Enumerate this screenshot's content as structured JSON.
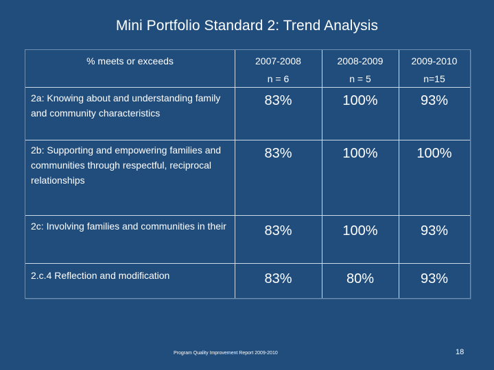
{
  "slide": {
    "title": "Mini Portfolio Standard 2: Trend Analysis",
    "footer": "Program Quality Improvement Report 2009-2010",
    "page_number": "18"
  },
  "table": {
    "first_header": "% meets or exceeds",
    "columns": [
      {
        "year": "2007-2008",
        "n": "n = 6"
      },
      {
        "year": "2008-2009",
        "n": "n = 5"
      },
      {
        "year": "2009-2010",
        "n": "n=15"
      }
    ],
    "rows": [
      {
        "label": "2a: Knowing about and understanding family and community characteristics",
        "values": [
          "83%",
          "100%",
          "93%"
        ]
      },
      {
        "label": "2b: Supporting and empowering families and communities through respectful, reciprocal relationships",
        "values": [
          "83%",
          "100%",
          "100%"
        ]
      },
      {
        "label": "2c: Involving families and communities in their",
        "values": [
          "83%",
          "100%",
          "93%"
        ]
      },
      {
        "label": "2.c.4 Reflection and modification",
        "values": [
          "83%",
          "80%",
          "93%"
        ]
      }
    ]
  }
}
